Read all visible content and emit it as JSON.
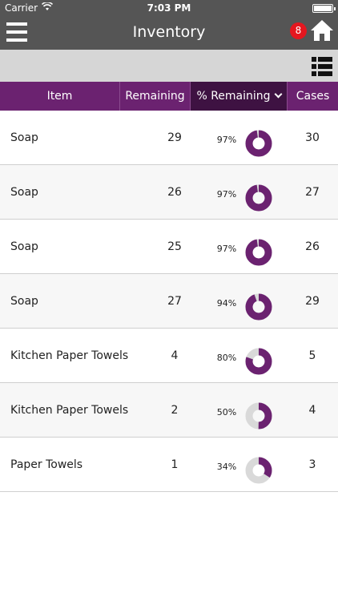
{
  "status_bar": {
    "carrier": "Carrier",
    "time": "7:03 PM"
  },
  "nav": {
    "title": "Inventory",
    "badge_count": "8"
  },
  "table": {
    "headers": {
      "item": "Item",
      "remaining": "Remaining",
      "pct_remaining": "% Remaining",
      "cases": "Cases"
    },
    "rows": [
      {
        "item": "Soap",
        "remaining": "29",
        "pct": "97%",
        "pct_value": 97,
        "cases": "30"
      },
      {
        "item": "Soap",
        "remaining": "26",
        "pct": "97%",
        "pct_value": 97,
        "cases": "27"
      },
      {
        "item": "Soap",
        "remaining": "25",
        "pct": "97%",
        "pct_value": 97,
        "cases": "26"
      },
      {
        "item": "Soap",
        "remaining": "27",
        "pct": "94%",
        "pct_value": 94,
        "cases": "29"
      },
      {
        "item": "Kitchen Paper Towels",
        "remaining": "4",
        "pct": "80%",
        "pct_value": 80,
        "cases": "5"
      },
      {
        "item": "Kitchen Paper Towels",
        "remaining": "2",
        "pct": "50%",
        "pct_value": 50,
        "cases": "4"
      },
      {
        "item": "Paper Towels",
        "remaining": "1",
        "pct": "34%",
        "pct_value": 34,
        "cases": "3"
      }
    ]
  },
  "colors": {
    "accent": "#6b2270",
    "accent_dark": "#3e1242",
    "donut_track": "#d9d9d9",
    "nav_bg": "#555555",
    "badge": "#e5171f"
  },
  "icons": {
    "menu": "hamburger-menu-icon",
    "home": "home-icon",
    "list": "list-view-icon",
    "wifi": "wifi-icon",
    "battery": "battery-icon"
  }
}
